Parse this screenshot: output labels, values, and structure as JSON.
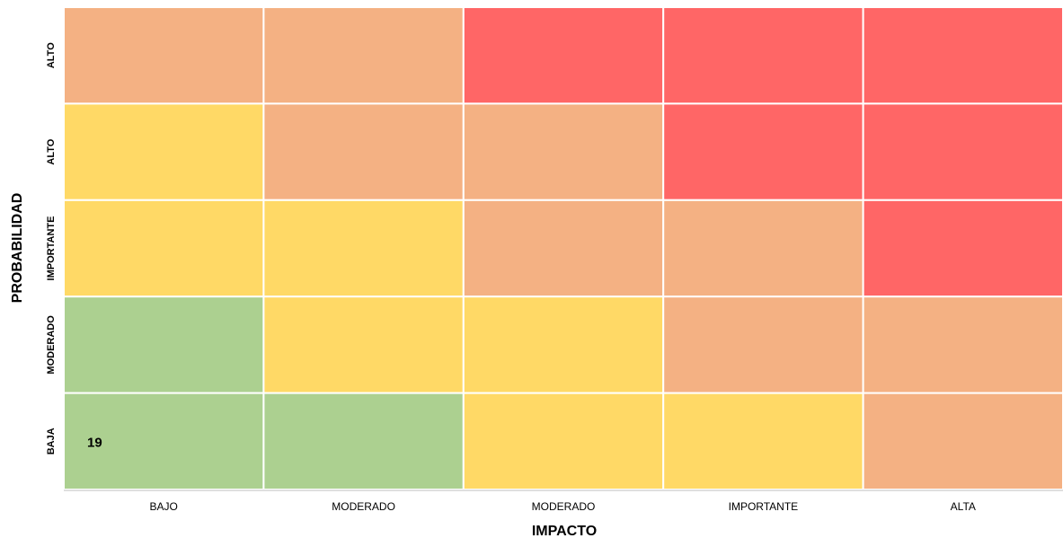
{
  "chart_data": {
    "type": "heatmap",
    "x_label": "IMPACTO",
    "y_label": "PROBABILIDAD",
    "x_categories": [
      "BAJO",
      "MODERADO",
      "MODERADO",
      "IMPORTANTE",
      "ALTA"
    ],
    "y_categories": [
      "ALTO",
      "ALTO",
      "IMPORTANTE",
      "MODERADO",
      "BAJA"
    ],
    "colors": [
      [
        "#f4b183",
        "#f4b183",
        "#ff6666",
        "#ff6666",
        "#ff6666"
      ],
      [
        "#ffd966",
        "#f4b183",
        "#f4b183",
        "#ff6666",
        "#ff6666"
      ],
      [
        "#ffd966",
        "#ffd966",
        "#f4b183",
        "#f4b183",
        "#ff6666"
      ],
      [
        "#acd090",
        "#ffd966",
        "#ffd966",
        "#f4b183",
        "#f4b183"
      ],
      [
        "#acd090",
        "#acd090",
        "#ffd966",
        "#ffd966",
        "#f4b183"
      ]
    ],
    "values": [
      [
        null,
        null,
        null,
        null,
        null
      ],
      [
        null,
        null,
        null,
        null,
        null
      ],
      [
        null,
        null,
        null,
        null,
        null
      ],
      [
        null,
        null,
        null,
        null,
        null
      ],
      [
        19,
        null,
        null,
        null,
        null
      ]
    ]
  }
}
